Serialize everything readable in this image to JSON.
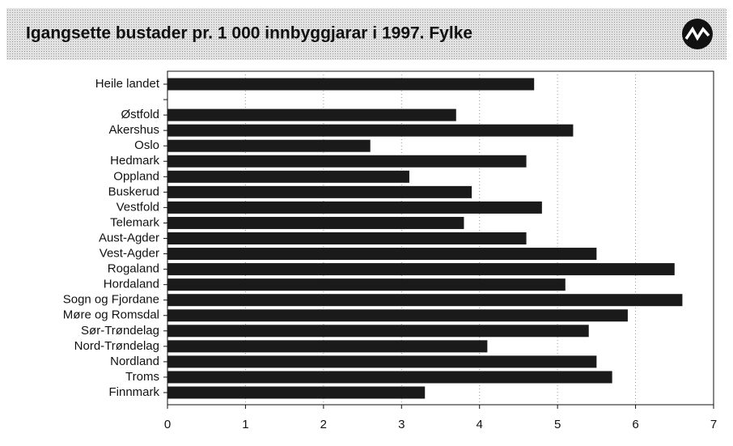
{
  "chart_data": {
    "type": "bar",
    "orientation": "horizontal",
    "title": "Igangsette bustader pr. 1 000 innbyggjarar i 1997. Fylke",
    "categories": [
      "Heile landet",
      null,
      "Østfold",
      "Akershus",
      "Oslo",
      "Hedmark",
      "Oppland",
      "Buskerud",
      "Vestfold",
      "Telemark",
      "Aust-Agder",
      "Vest-Agder",
      "Rogaland",
      "Hordaland",
      "Sogn og Fjordane",
      "Møre og Romsdal",
      "Sør-Trøndelag",
      "Nord-Trøndelag",
      "Nordland",
      "Troms",
      "Finnmark"
    ],
    "values": [
      4.7,
      null,
      3.7,
      5.2,
      2.6,
      4.6,
      3.1,
      3.9,
      4.8,
      3.8,
      4.6,
      5.5,
      6.5,
      5.1,
      6.6,
      5.9,
      5.4,
      4.1,
      5.5,
      5.7,
      3.3
    ],
    "color": "#1a1a1a",
    "xlim": [
      0,
      7
    ],
    "xticks": [
      0,
      1,
      2,
      3,
      4,
      5,
      6,
      7
    ],
    "grid": true
  }
}
